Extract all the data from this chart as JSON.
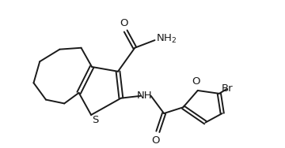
{
  "bg_color": "#ffffff",
  "line_color": "#1a1a1a",
  "line_width": 1.4,
  "font_size": 9.5,
  "fig_width": 3.6,
  "fig_height": 1.88,
  "dpi": 100,
  "xlim": [
    0,
    360
  ],
  "ylim": [
    0,
    188
  ]
}
